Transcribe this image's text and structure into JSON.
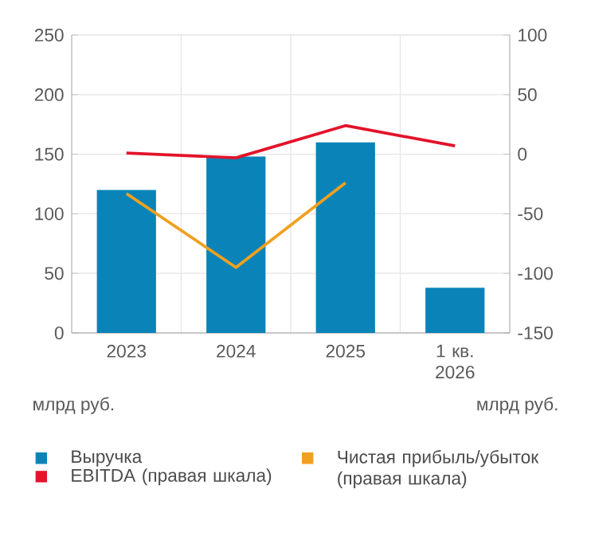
{
  "chart_data": {
    "type": "bar",
    "categories": [
      "2023",
      "2024",
      "2025",
      "1 кв. 2026"
    ],
    "series": [
      {
        "name": "Выручка",
        "color": "#0a84b8",
        "values": [
          120,
          148,
          160,
          38
        ]
      },
      {
        "name": "Чистая прибыль/убыток (правая шкала)",
        "type": "line",
        "axis": "y2",
        "color": "#f0a020",
        "values": [
          -33,
          -95,
          -24,
          null
        ]
      },
      {
        "name": "EBITDA (правая шкала)",
        "type": "line",
        "axis": "y2",
        "color": "#e3132a",
        "values": [
          1,
          -3,
          24,
          7
        ]
      }
    ],
    "ylabel": "млрд руб.",
    "y2label": "млрд руб.",
    "ylim": [
      0,
      250
    ],
    "yticks": [
      0,
      50,
      100,
      150,
      200,
      250
    ],
    "y2lim": [
      -150,
      100
    ],
    "y2ticks": [
      -150,
      -100,
      -50,
      0,
      50,
      100
    ],
    "grid": true,
    "legend": "bottom"
  }
}
